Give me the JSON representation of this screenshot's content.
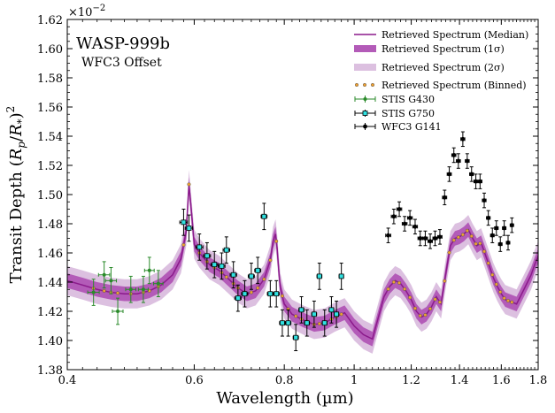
{
  "chart_data": {
    "type": "line",
    "title": "",
    "xlabel": "Wavelength (µm)",
    "ylabel": "Transit Depth (Rp/R*)²",
    "ylabel_parts": {
      "main": "Transit Depth ",
      "open": "(",
      "Rp": "R",
      "p": "p",
      "slash": "/",
      "Rs": "R",
      "s": "*",
      "close": ")",
      "sq": "2"
    },
    "offset_text": {
      "base": "×10",
      "exp": "−2"
    },
    "x_scale": "log",
    "xlim": [
      0.4,
      1.8
    ],
    "ylim": [
      1.38,
      1.62
    ],
    "x_ticks": [
      0.4,
      0.6,
      0.8,
      1.0,
      1.2,
      1.4,
      1.6,
      1.8
    ],
    "x_tick_labels": [
      "0.4",
      "0.6",
      "0.8",
      "1",
      "1.2",
      "1.4",
      "1.6",
      "1.8"
    ],
    "y_ticks": [
      1.38,
      1.4,
      1.42,
      1.44,
      1.46,
      1.48,
      1.5,
      1.52,
      1.54,
      1.56,
      1.58,
      1.6,
      1.62
    ],
    "y_tick_labels": [
      "1.38",
      "1.40",
      "1.42",
      "1.44",
      "1.46",
      "1.48",
      "1.50",
      "1.52",
      "1.54",
      "1.56",
      "1.58",
      "1.60",
      "1.62"
    ],
    "annotations": {
      "planet": "WASP-999b",
      "note": "WFC3 Offset"
    },
    "legend": {
      "placement": "top-right",
      "entries": [
        "Retrieved Spectrum (Median)",
        "Retrieved Spectrum (1σ)",
        "Retrieved Spectrum (2σ)",
        "Retrieved Spectrum (Binned)",
        "STIS G430",
        "STIS G750",
        "WFC3 G141"
      ]
    },
    "colors": {
      "median": "#8b1a8b",
      "sigma1": "#b35bb8",
      "sigma2": "#dcc0e0",
      "binned_fill": "#f0a030",
      "g430_err": "#2a8a2a",
      "g750_fill": "#30e0e0",
      "wfc3": "#000000"
    },
    "series": [
      {
        "name": "Retrieved Spectrum (Median)",
        "x": [
          0.4,
          0.42,
          0.44,
          0.46,
          0.48,
          0.5,
          0.52,
          0.54,
          0.56,
          0.575,
          0.585,
          0.59,
          0.595,
          0.6,
          0.61,
          0.63,
          0.65,
          0.67,
          0.69,
          0.71,
          0.73,
          0.75,
          0.765,
          0.772,
          0.778,
          0.782,
          0.786,
          0.79,
          0.8,
          0.82,
          0.85,
          0.88,
          0.91,
          0.94,
          0.97,
          1.0,
          1.03,
          1.06,
          1.1,
          1.12,
          1.14,
          1.16,
          1.18,
          1.2,
          1.22,
          1.24,
          1.26,
          1.28,
          1.3,
          1.32,
          1.34,
          1.36,
          1.38,
          1.4,
          1.42,
          1.44,
          1.46,
          1.48,
          1.5,
          1.52,
          1.54,
          1.56,
          1.58,
          1.6,
          1.62,
          1.64,
          1.66,
          1.68,
          1.7,
          1.72,
          1.74,
          1.76,
          1.78,
          1.8
        ],
        "y": [
          1.441,
          1.438,
          1.435,
          1.433,
          1.432,
          1.432,
          1.434,
          1.438,
          1.445,
          1.456,
          1.475,
          1.507,
          1.487,
          1.466,
          1.46,
          1.452,
          1.448,
          1.442,
          1.436,
          1.432,
          1.434,
          1.442,
          1.455,
          1.468,
          1.473,
          1.463,
          1.448,
          1.436,
          1.425,
          1.418,
          1.414,
          1.411,
          1.412,
          1.416,
          1.419,
          1.41,
          1.404,
          1.401,
          1.43,
          1.437,
          1.441,
          1.439,
          1.434,
          1.428,
          1.42,
          1.416,
          1.418,
          1.423,
          1.43,
          1.425,
          1.446,
          1.465,
          1.47,
          1.471,
          1.473,
          1.476,
          1.47,
          1.465,
          1.467,
          1.459,
          1.451,
          1.443,
          1.437,
          1.432,
          1.428,
          1.427,
          1.426,
          1.425,
          1.43,
          1.435,
          1.44,
          1.445,
          1.452,
          1.458
        ]
      },
      {
        "name": "STIS G430",
        "x": [
          0.435,
          0.45,
          0.46,
          0.47,
          0.49,
          0.51,
          0.52,
          0.535
        ],
        "y": [
          1.433,
          1.445,
          1.441,
          1.42,
          1.435,
          1.435,
          1.448,
          1.439
        ],
        "yerr": [
          0.009,
          0.009,
          0.009,
          0.009,
          0.009,
          0.009,
          0.009,
          0.009
        ],
        "xerr": [
          0.008,
          0.008,
          0.008,
          0.008,
          0.008,
          0.008,
          0.008,
          0.008
        ]
      },
      {
        "name": "STIS G750",
        "x": [
          0.58,
          0.59,
          0.61,
          0.625,
          0.64,
          0.655,
          0.665,
          0.68,
          0.69,
          0.705,
          0.72,
          0.735,
          0.75,
          0.765,
          0.78,
          0.795,
          0.81,
          0.83,
          0.845,
          0.86,
          0.88,
          0.895,
          0.91,
          0.93,
          0.945,
          0.96
        ],
        "y": [
          1.481,
          1.477,
          1.464,
          1.458,
          1.452,
          1.451,
          1.462,
          1.445,
          1.429,
          1.432,
          1.444,
          1.448,
          1.485,
          1.432,
          1.432,
          1.412,
          1.412,
          1.402,
          1.421,
          1.412,
          1.418,
          1.444,
          1.412,
          1.421,
          1.418,
          1.444
        ],
        "yerr": [
          0.009,
          0.009,
          0.009,
          0.009,
          0.009,
          0.009,
          0.009,
          0.009,
          0.009,
          0.009,
          0.009,
          0.009,
          0.009,
          0.009,
          0.009,
          0.009,
          0.009,
          0.009,
          0.009,
          0.009,
          0.009,
          0.009,
          0.009,
          0.009,
          0.009,
          0.009
        ],
        "xerr": [
          0.007,
          0.007,
          0.007,
          0.007,
          0.007,
          0.007,
          0.007,
          0.007,
          0.007,
          0.007,
          0.007,
          0.007,
          0.007,
          0.007,
          0.007,
          0.007,
          0.007,
          0.007,
          0.007,
          0.007,
          0.007,
          0.007,
          0.007,
          0.007,
          0.007,
          0.007
        ]
      },
      {
        "name": "WFC3 G141",
        "x": [
          1.115,
          1.135,
          1.155,
          1.175,
          1.195,
          1.215,
          1.235,
          1.255,
          1.275,
          1.295,
          1.315,
          1.335,
          1.355,
          1.375,
          1.395,
          1.415,
          1.435,
          1.455,
          1.475,
          1.495,
          1.515,
          1.535,
          1.555,
          1.575,
          1.595,
          1.615,
          1.635,
          1.655
        ],
        "y": [
          1.472,
          1.485,
          1.49,
          1.48,
          1.484,
          1.478,
          1.47,
          1.47,
          1.468,
          1.47,
          1.471,
          1.498,
          1.514,
          1.527,
          1.523,
          1.538,
          1.523,
          1.514,
          1.509,
          1.509,
          1.496,
          1.484,
          1.472,
          1.477,
          1.466,
          1.477,
          1.467,
          1.479
        ],
        "yerr": [
          0.005,
          0.005,
          0.005,
          0.005,
          0.005,
          0.005,
          0.005,
          0.005,
          0.005,
          0.005,
          0.005,
          0.005,
          0.005,
          0.005,
          0.005,
          0.005,
          0.005,
          0.005,
          0.005,
          0.005,
          0.005,
          0.005,
          0.005,
          0.005,
          0.005,
          0.005,
          0.005,
          0.005
        ],
        "xerr": [
          0.009,
          0.009,
          0.009,
          0.009,
          0.009,
          0.009,
          0.009,
          0.009,
          0.009,
          0.009,
          0.009,
          0.009,
          0.009,
          0.009,
          0.009,
          0.009,
          0.009,
          0.009,
          0.009,
          0.009,
          0.009,
          0.009,
          0.009,
          0.009,
          0.009,
          0.009,
          0.009,
          0.009
        ]
      }
    ],
    "band_1sigma": 0.005,
    "band_2sigma": 0.01
  }
}
